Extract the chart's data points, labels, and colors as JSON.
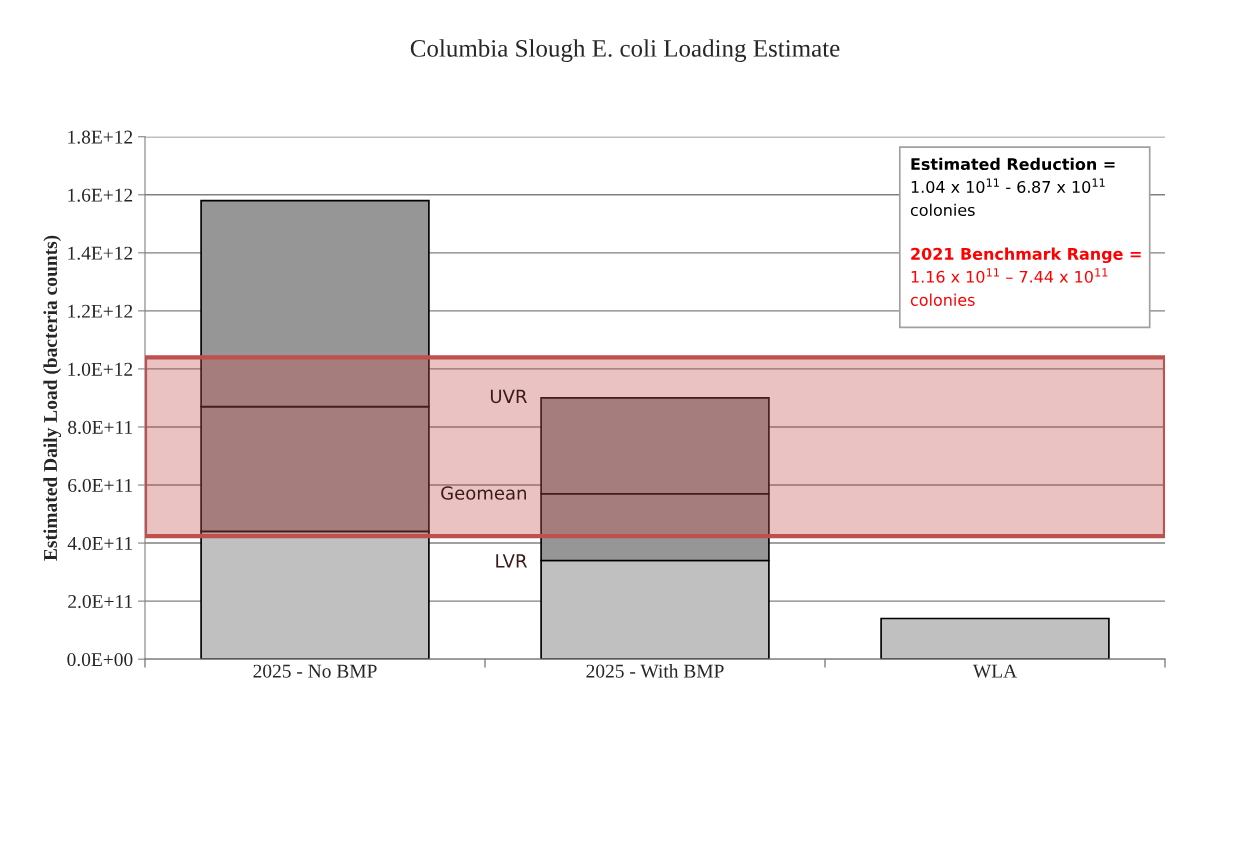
{
  "chart_data": {
    "type": "bar",
    "title": "Columbia Slough E. coli Loading Estimate",
    "ylabel": "Estimated Daily Load (bacteria counts)",
    "categories": [
      "2025 - No BMP",
      "2025 - With BMP",
      "WLA"
    ],
    "stacked": true,
    "series": [
      {
        "color": "#c0c0c0",
        "values": [
          440000000000.0,
          340000000000.0,
          140000000000.0
        ]
      },
      {
        "color": "#969696",
        "values": [
          430000000000.0,
          230000000000.0,
          null
        ]
      },
      {
        "color": "#969696",
        "values": [
          710000000000.0,
          330000000000.0,
          null
        ]
      }
    ],
    "ylim": [
      0,
      1800000000000.0
    ],
    "yticks": [
      {
        "value": 0,
        "label": "0.0E+00"
      },
      {
        "value": 200000000000.0,
        "label": "2.0E+11"
      },
      {
        "value": 400000000000.0,
        "label": "4.0E+11"
      },
      {
        "value": 600000000000.0,
        "label": "6.0E+11"
      },
      {
        "value": 800000000000.0,
        "label": "8.0E+11"
      },
      {
        "value": 1000000000000.0,
        "label": "1.0E+12"
      },
      {
        "value": 1200000000000.0,
        "label": "1.2E+12"
      },
      {
        "value": 1400000000000.0,
        "label": "1.4E+12"
      },
      {
        "value": 1600000000000.0,
        "label": "1.6E+12"
      },
      {
        "value": 1800000000000.0,
        "label": "1.8E+12"
      }
    ],
    "grid": "y",
    "bands": [
      {
        "axis": "y",
        "from": 424000000000.0,
        "to": 1040000000000.0,
        "color": "#c0504d",
        "label": "2021 Benchmark Range =\n1.16 x 10$^{11}$ – 7.44 x 10$^{11}$\ncolonies"
      }
    ],
    "annotations": [
      "UVR",
      "Geomean",
      "LVR",
      "Estimated Reduction =\n1.04 x 10$^{11}$ - 6.87 x 10$^{11}$\ncolonies"
    ]
  }
}
